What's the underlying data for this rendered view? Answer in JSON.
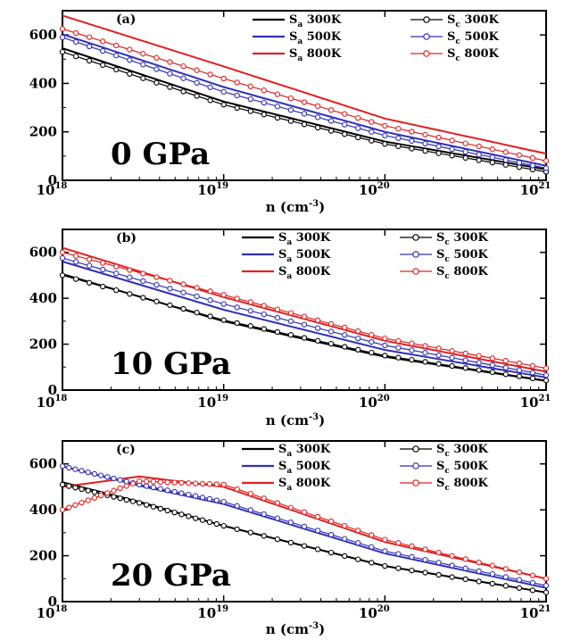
{
  "chart_data": [
    {
      "type": "line",
      "panel_label": "(a)",
      "pressure_label": "0 GPa",
      "xlabel": "n (cm",
      "xlabel_exp": "-3",
      "xlabel_close": ")",
      "xscale": "log",
      "xlim": [
        1e+18,
        1e+21
      ],
      "ylim": [
        0,
        700
      ],
      "yticks": [
        "0",
        "200",
        "400",
        "600"
      ],
      "xticks": [
        {
          "base": "10",
          "exp": "18"
        },
        {
          "base": "10",
          "exp": "19"
        },
        {
          "base": "10",
          "exp": "20"
        },
        {
          "base": "10",
          "exp": "21"
        }
      ],
      "x": [
        1e+18,
        1e+19,
        1e+20,
        1e+21
      ],
      "series": [
        {
          "name_base": "S",
          "name_sub": "a",
          "name_rest": " 300K",
          "color": "#000000",
          "marker": "none",
          "values": [
            545,
            325,
            160,
            45
          ]
        },
        {
          "name_base": "S",
          "name_sub": "a",
          "name_rest": " 500K",
          "color": "#3030b8",
          "marker": "none",
          "values": [
            603,
            385,
            200,
            60
          ]
        },
        {
          "name_base": "S",
          "name_sub": "a",
          "name_rest": " 800K",
          "color": "#e02020",
          "marker": "none",
          "values": [
            680,
            470,
            255,
            110
          ]
        },
        {
          "name_base": "S",
          "name_sub": "c",
          "name_rest": " 300K",
          "color": "#000000",
          "marker": "circle",
          "values": [
            530,
            312,
            150,
            35
          ]
        },
        {
          "name_base": "S",
          "name_sub": "c",
          "name_rest": " 500K",
          "color": "#3030b8",
          "marker": "circle",
          "values": [
            590,
            365,
            185,
            50
          ]
        },
        {
          "name_base": "S",
          "name_sub": "c",
          "name_rest": " 800K",
          "color": "#e02020",
          "marker": "circle",
          "values": [
            625,
            420,
            225,
            80
          ]
        }
      ]
    },
    {
      "type": "line",
      "panel_label": "(b)",
      "pressure_label": "10 GPa",
      "xlabel": "n (cm",
      "xlabel_exp": "-3",
      "xlabel_close": ")",
      "xscale": "log",
      "xlim": [
        1e+18,
        1e+21
      ],
      "ylim": [
        0,
        700
      ],
      "yticks": [
        "0",
        "200",
        "400",
        "600"
      ],
      "xticks": [
        {
          "base": "10",
          "exp": "18"
        },
        {
          "base": "10",
          "exp": "19"
        },
        {
          "base": "10",
          "exp": "20"
        },
        {
          "base": "10",
          "exp": "21"
        }
      ],
      "x": [
        1e+18,
        1e+19,
        1e+20,
        1e+21
      ],
      "series": [
        {
          "name_base": "S",
          "name_sub": "a",
          "name_rest": " 300K",
          "color": "#000000",
          "marker": "none",
          "values": [
            505,
            300,
            145,
            40
          ]
        },
        {
          "name_base": "S",
          "name_sub": "a",
          "name_rest": " 500K",
          "color": "#3030b8",
          "marker": "none",
          "values": [
            560,
            350,
            175,
            55
          ]
        },
        {
          "name_base": "S",
          "name_sub": "a",
          "name_rest": " 800K",
          "color": "#e02020",
          "marker": "none",
          "values": [
            620,
            405,
            215,
            80
          ]
        },
        {
          "name_base": "S",
          "name_sub": "c",
          "name_rest": " 300K",
          "color": "#000000",
          "marker": "circle",
          "values": [
            500,
            305,
            150,
            42
          ]
        },
        {
          "name_base": "S",
          "name_sub": "c",
          "name_rest": " 500K",
          "color": "#3030b8",
          "marker": "circle",
          "values": [
            575,
            375,
            195,
            65
          ]
        },
        {
          "name_base": "S",
          "name_sub": "c",
          "name_rest": " 800K",
          "color": "#e02020",
          "marker": "circle",
          "values": [
            600,
            415,
            225,
            95
          ]
        }
      ]
    },
    {
      "type": "line",
      "panel_label": "(c)",
      "pressure_label": "20 GPa",
      "xlabel": "n (cm",
      "xlabel_exp": "-3",
      "xlabel_close": ")",
      "xscale": "log",
      "xlim": [
        1e+18,
        1e+21
      ],
      "ylim": [
        0,
        700
      ],
      "yticks": [
        "0",
        "200",
        "400",
        "600"
      ],
      "xticks": [
        {
          "base": "10",
          "exp": "18"
        },
        {
          "base": "10",
          "exp": "19"
        },
        {
          "base": "10",
          "exp": "20"
        },
        {
          "base": "10",
          "exp": "21"
        }
      ],
      "x": [
        1e+18,
        3e+18,
        1e+19,
        1e+20,
        1e+21
      ],
      "series": [
        {
          "name_base": "S",
          "name_sub": "a",
          "name_rest": " 300K",
          "color": "#000000",
          "marker": "none",
          "values": [
            520,
            435,
            330,
            155,
            40
          ]
        },
        {
          "name_base": "S",
          "name_sub": "a",
          "name_rest": " 500K",
          "color": "#3030b8",
          "marker": "none",
          "values": [
            590,
            505,
            425,
            210,
            60
          ]
        },
        {
          "name_base": "S",
          "name_sub": "a",
          "name_rest": " 800K",
          "color": "#e02020",
          "marker": "none",
          "values": [
            500,
            545,
            500,
            260,
            100
          ]
        },
        {
          "name_base": "S",
          "name_sub": "c",
          "name_rest": " 300K",
          "color": "#000000",
          "marker": "circle",
          "values": [
            510,
            430,
            330,
            155,
            40
          ]
        },
        {
          "name_base": "S",
          "name_sub": "c",
          "name_rest": " 500K",
          "color": "#3030b8",
          "marker": "circle",
          "values": [
            590,
            510,
            435,
            220,
            70
          ]
        },
        {
          "name_base": "S",
          "name_sub": "c",
          "name_rest": " 800K",
          "color": "#e02020",
          "marker": "circle",
          "values": [
            400,
            525,
            510,
            270,
            100
          ]
        }
      ]
    }
  ]
}
